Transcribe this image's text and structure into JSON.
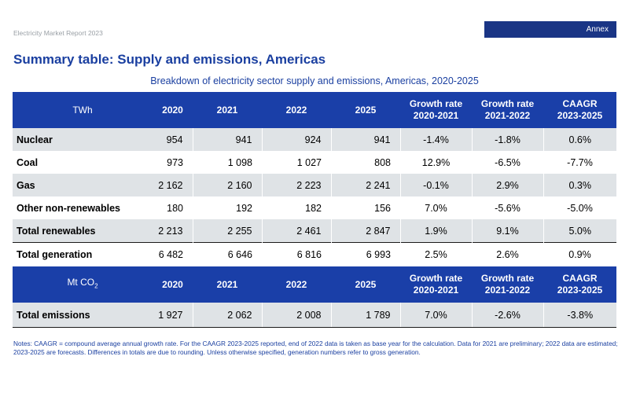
{
  "page": {
    "report_name": "Electricity Market Report 2023",
    "annex_label": "Annex",
    "title": "Summary table: Supply and emissions, Americas",
    "caption": "Breakdown of electricity sector supply and emissions, Americas, 2020-2025"
  },
  "supply_table": {
    "columns": [
      "TWh",
      "2020",
      "2021",
      "2022",
      "2025",
      "Growth rate 2020-2021",
      "Growth rate 2021-2022",
      "CAAGR 2023-2025"
    ],
    "rows": [
      {
        "label": "Nuclear",
        "v2020": "954",
        "v2021": "941",
        "v2022": "924",
        "v2025": "941",
        "g1": "-1.4%",
        "g2": "-1.8%",
        "caagr": "0.6%"
      },
      {
        "label": "Coal",
        "v2020": "973",
        "v2021": "1 098",
        "v2022": "1 027",
        "v2025": "808",
        "g1": "12.9%",
        "g2": "-6.5%",
        "caagr": "-7.7%"
      },
      {
        "label": "Gas",
        "v2020": "2 162",
        "v2021": "2 160",
        "v2022": "2 223",
        "v2025": "2 241",
        "g1": "-0.1%",
        "g2": "2.9%",
        "caagr": "0.3%"
      },
      {
        "label": "Other non-renewables",
        "v2020": "180",
        "v2021": "192",
        "v2022": "182",
        "v2025": "156",
        "g1": "7.0%",
        "g2": "-5.6%",
        "caagr": "-5.0%"
      },
      {
        "label": "Total renewables",
        "v2020": "2 213",
        "v2021": "2 255",
        "v2022": "2 461",
        "v2025": "2 847",
        "g1": "1.9%",
        "g2": "9.1%",
        "caagr": "5.0%"
      }
    ],
    "total": {
      "label": "Total generation",
      "v2020": "6 482",
      "v2021": "6 646",
      "v2022": "6 816",
      "v2025": "6 993",
      "g1": "2.5%",
      "g2": "2.6%",
      "caagr": "0.9%"
    }
  },
  "emissions_table": {
    "unit_prefix": "Mt CO",
    "unit_subscript": "2",
    "columns": [
      "2020",
      "2021",
      "2022",
      "2025",
      "Growth rate 2020-2021",
      "Growth rate 2021-2022",
      "CAAGR 2023-2025"
    ],
    "row": {
      "label": "Total emissions",
      "v2020": "1 927",
      "v2021": "2 062",
      "v2022": "2 008",
      "v2025": "1 789",
      "g1": "7.0%",
      "g2": "-2.6%",
      "caagr": "-3.8%"
    }
  },
  "notes": "Notes: CAAGR = compound average annual growth rate. For the CAAGR 2023-2025 reported, end of 2022 data is taken as base year for the calculation. Data for 2021 are preliminary; 2022 data are estimated; 2023-2025 are forecasts. Differences in totals are due to rounding. Unless otherwise specified, generation numbers refer to gross generation.",
  "colors": {
    "header_blue": "#1a3fa8",
    "annex_blue": "#1a3585",
    "title_blue": "#1a3fa0",
    "row_shade": "#dfe3e6"
  }
}
